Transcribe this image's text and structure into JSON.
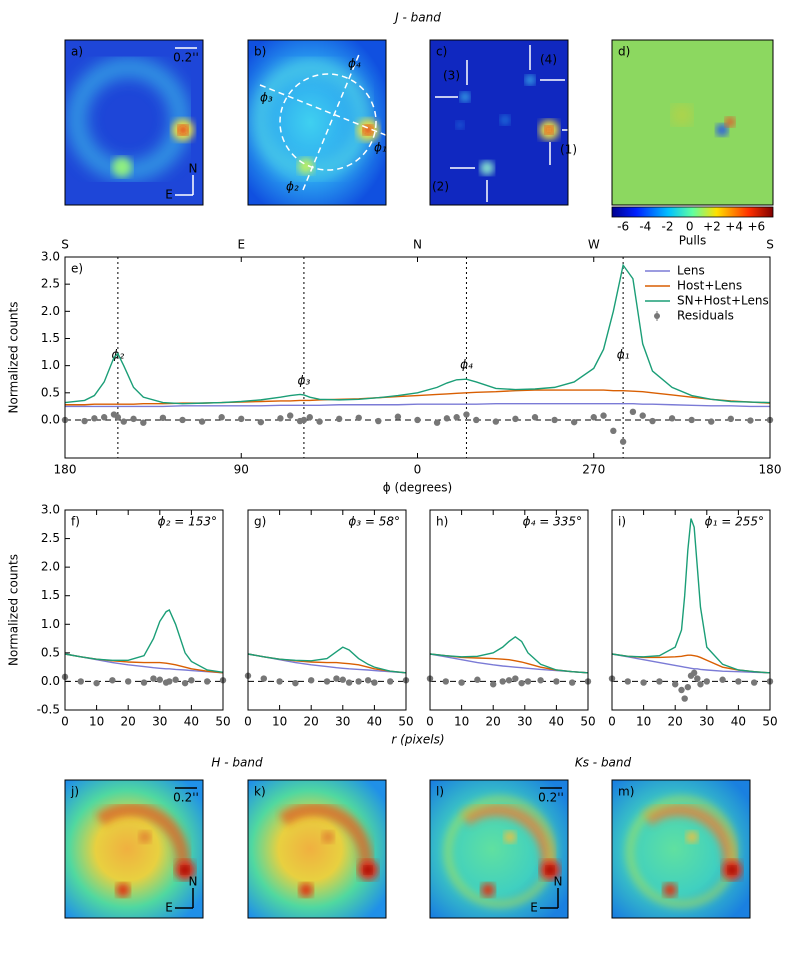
{
  "figure": {
    "band_titles": [
      "J - band",
      "H - band",
      "Ks - band"
    ],
    "panel_labels": [
      "a)",
      "b)",
      "c)",
      "d)",
      "e)",
      "f)",
      "g)",
      "h)",
      "i)",
      "j)",
      "k)",
      "l)",
      "m)"
    ],
    "scale_bar": "0.2''",
    "compass": {
      "north": "N",
      "east": "E"
    },
    "b_labels": [
      "ϕ₁",
      "ϕ₂",
      "ϕ₃",
      "ϕ₄"
    ],
    "c_labels": [
      "(1)",
      "(2)",
      "(3)",
      "(4)"
    ],
    "colorbar": {
      "label": "Pulls",
      "lim": [
        -7,
        7.5
      ],
      "ticks": [
        -6,
        -4,
        -2,
        0,
        {
          "value": 2,
          "label": "+2"
        },
        {
          "value": 4,
          "label": "+4"
        },
        {
          "value": 6,
          "label": "+6"
        }
      ]
    }
  },
  "chart_data": [
    {
      "type": "line",
      "ylabel": "Normalized counts",
      "xlabel": "ϕ (degrees)",
      "legend": "upper right",
      "xlim": [
        180,
        -180
      ],
      "ylim": [
        -0.7,
        3.0
      ],
      "xticks": [
        180,
        90,
        0,
        {
          "value": -90,
          "label": "270"
        },
        {
          "value": -180,
          "label": "180"
        }
      ],
      "top_ticks": [
        {
          "value": 180,
          "label": "S"
        },
        {
          "value": 90,
          "label": "E"
        },
        {
          "value": 0,
          "label": "N"
        },
        {
          "value": -90,
          "label": "W"
        },
        {
          "value": -180,
          "label": "S"
        }
      ],
      "yticks": [
        {
          "value": 0,
          "label": "0.0"
        },
        {
          "value": 0.5,
          "label": "0.5"
        },
        {
          "value": 1,
          "label": "1.0"
        },
        {
          "value": 1.5,
          "label": "1.5"
        },
        {
          "value": 2,
          "label": "2.0"
        },
        {
          "value": 2.5,
          "label": "2.5"
        },
        {
          "value": 3,
          "label": "3.0"
        }
      ],
      "markers": [
        {
          "value": 153,
          "label": "ϕ₂"
        },
        {
          "value": 58,
          "label": "ϕ₃"
        },
        {
          "value": -25,
          "label": "ϕ₄"
        },
        {
          "value": -105,
          "label": "ϕ₁"
        }
      ],
      "x": [
        180,
        170,
        165,
        160,
        155,
        153,
        150,
        145,
        140,
        130,
        120,
        110,
        100,
        90,
        80,
        70,
        65,
        60,
        58,
        55,
        50,
        40,
        30,
        20,
        10,
        0,
        -10,
        -15,
        -20,
        -25,
        -30,
        -40,
        -50,
        -60,
        -70,
        -80,
        -90,
        -95,
        -100,
        -105,
        -110,
        -115,
        -120,
        -130,
        -140,
        -150,
        -160,
        -170,
        -180
      ],
      "series": [
        {
          "name": "Lens",
          "color": "#7b7bd6",
          "values": [
            0.25,
            0.25,
            0.25,
            0.25,
            0.25,
            0.25,
            0.25,
            0.25,
            0.25,
            0.25,
            0.26,
            0.26,
            0.26,
            0.26,
            0.26,
            0.27,
            0.27,
            0.27,
            0.27,
            0.27,
            0.27,
            0.28,
            0.28,
            0.28,
            0.28,
            0.29,
            0.29,
            0.29,
            0.29,
            0.29,
            0.29,
            0.3,
            0.3,
            0.3,
            0.3,
            0.3,
            0.3,
            0.3,
            0.3,
            0.3,
            0.3,
            0.29,
            0.29,
            0.28,
            0.27,
            0.26,
            0.26,
            0.25,
            0.25
          ]
        },
        {
          "name": "Host+Lens",
          "color": "#d95f02",
          "values": [
            0.28,
            0.28,
            0.29,
            0.29,
            0.29,
            0.29,
            0.29,
            0.29,
            0.3,
            0.3,
            0.31,
            0.31,
            0.32,
            0.33,
            0.34,
            0.35,
            0.35,
            0.36,
            0.36,
            0.36,
            0.37,
            0.38,
            0.39,
            0.41,
            0.43,
            0.45,
            0.47,
            0.48,
            0.49,
            0.5,
            0.51,
            0.52,
            0.54,
            0.55,
            0.55,
            0.55,
            0.55,
            0.55,
            0.54,
            0.54,
            0.53,
            0.52,
            0.5,
            0.46,
            0.42,
            0.38,
            0.35,
            0.33,
            0.31
          ]
        },
        {
          "name": "SN+Host+Lens",
          "color": "#1b9e77",
          "values": [
            0.32,
            0.36,
            0.45,
            0.7,
            1.15,
            1.22,
            1.0,
            0.6,
            0.42,
            0.32,
            0.3,
            0.31,
            0.32,
            0.34,
            0.37,
            0.42,
            0.45,
            0.47,
            0.46,
            0.42,
            0.38,
            0.37,
            0.38,
            0.41,
            0.45,
            0.5,
            0.6,
            0.68,
            0.74,
            0.75,
            0.7,
            0.58,
            0.56,
            0.57,
            0.6,
            0.7,
            0.95,
            1.3,
            2.0,
            2.85,
            2.6,
            1.4,
            0.9,
            0.6,
            0.45,
            0.38,
            0.34,
            0.33,
            0.32
          ]
        },
        {
          "name": "Residuals",
          "color": "#777777",
          "marker": true,
          "values": [
            0.0,
            -0.02,
            0.03,
            0.05,
            0.1,
            0.05,
            -0.03,
            0.02,
            -0.05,
            0.04,
            0.0,
            -0.03,
            0.05,
            0.02,
            -0.04,
            0.03,
            0.08,
            -0.02,
            0.0,
            0.05,
            -0.03,
            0.02,
            0.04,
            -0.02,
            0.06,
            0.0,
            -0.05,
            0.03,
            0.05,
            0.1,
            0.0,
            -0.03,
            0.02,
            0.05,
            0.0,
            -0.04,
            0.05,
            0.08,
            -0.2,
            -0.4,
            0.15,
            0.08,
            -0.02,
            0.03,
            0.0,
            -0.03,
            0.02,
            -0.01,
            0.0
          ]
        }
      ]
    },
    {
      "type": "line",
      "ylabel": "Normalized counts",
      "xlabel": "r (pixels)",
      "note": "ϕ₂ = 153°",
      "xlim": [
        0,
        50
      ],
      "ylim": [
        -0.5,
        3.0
      ],
      "xticks": [
        0,
        10,
        20,
        30,
        40,
        50
      ],
      "yticks": [
        -0.5,
        {
          "value": 0,
          "label": "0.0"
        },
        0.5,
        {
          "value": 1,
          "label": "1.0"
        },
        1.5,
        {
          "value": 2,
          "label": "2.0"
        },
        2.5,
        {
          "value": 3,
          "label": "3.0"
        }
      ],
      "x": [
        0,
        5,
        10,
        15,
        20,
        25,
        28,
        30,
        32,
        33,
        35,
        38,
        40,
        45,
        50
      ],
      "series": [
        {
          "color": "#7b7bd6",
          "values": [
            0.48,
            0.43,
            0.38,
            0.33,
            0.29,
            0.26,
            0.24,
            0.23,
            0.22,
            0.22,
            0.21,
            0.2,
            0.19,
            0.17,
            0.15
          ]
        },
        {
          "color": "#d95f02",
          "values": [
            0.48,
            0.43,
            0.39,
            0.36,
            0.34,
            0.33,
            0.33,
            0.33,
            0.32,
            0.31,
            0.29,
            0.25,
            0.22,
            0.18,
            0.15
          ]
        },
        {
          "color": "#1b9e77",
          "values": [
            0.48,
            0.43,
            0.39,
            0.37,
            0.37,
            0.45,
            0.75,
            1.05,
            1.22,
            1.25,
            1.0,
            0.5,
            0.35,
            0.2,
            0.16
          ]
        },
        {
          "color": "#777777",
          "marker": true,
          "values": [
            0.08,
            0.0,
            -0.03,
            0.02,
            0.0,
            -0.02,
            0.05,
            0.03,
            -0.02,
            0.0,
            0.03,
            -0.03,
            0.02,
            0.0,
            0.02
          ]
        }
      ]
    },
    {
      "type": "line",
      "note": "ϕ₃ = 58°",
      "xlim": [
        0,
        50
      ],
      "ylim": [
        -0.5,
        3.0
      ],
      "xticks": [
        0,
        10,
        20,
        30,
        40,
        50
      ],
      "x": [
        0,
        5,
        10,
        15,
        20,
        25,
        28,
        30,
        32,
        35,
        38,
        40,
        45,
        50
      ],
      "series": [
        {
          "color": "#7b7bd6",
          "values": [
            0.48,
            0.43,
            0.38,
            0.33,
            0.29,
            0.26,
            0.24,
            0.23,
            0.22,
            0.21,
            0.2,
            0.19,
            0.17,
            0.15
          ]
        },
        {
          "color": "#d95f02",
          "values": [
            0.48,
            0.43,
            0.39,
            0.36,
            0.34,
            0.33,
            0.33,
            0.32,
            0.31,
            0.29,
            0.25,
            0.22,
            0.18,
            0.15
          ]
        },
        {
          "color": "#1b9e77",
          "values": [
            0.48,
            0.43,
            0.39,
            0.37,
            0.36,
            0.4,
            0.52,
            0.6,
            0.55,
            0.4,
            0.3,
            0.25,
            0.18,
            0.15
          ]
        },
        {
          "color": "#777777",
          "marker": true,
          "values": [
            0.1,
            0.05,
            0.0,
            -0.03,
            0.02,
            0.0,
            0.05,
            0.03,
            -0.02,
            0.0,
            0.02,
            -0.02,
            0.0,
            0.02
          ]
        }
      ]
    },
    {
      "type": "line",
      "note": "ϕ₄ = 335°",
      "xlim": [
        0,
        50
      ],
      "ylim": [
        -0.5,
        3.0
      ],
      "xticks": [
        0,
        10,
        20,
        30,
        40,
        50
      ],
      "x": [
        0,
        5,
        10,
        15,
        20,
        23,
        25,
        27,
        29,
        31,
        35,
        40,
        45,
        50
      ],
      "series": [
        {
          "color": "#7b7bd6",
          "values": [
            0.48,
            0.43,
            0.38,
            0.33,
            0.29,
            0.27,
            0.26,
            0.25,
            0.24,
            0.23,
            0.21,
            0.19,
            0.17,
            0.15
          ]
        },
        {
          "color": "#d95f02",
          "values": [
            0.48,
            0.45,
            0.42,
            0.41,
            0.4,
            0.39,
            0.38,
            0.36,
            0.34,
            0.31,
            0.25,
            0.2,
            0.17,
            0.15
          ]
        },
        {
          "color": "#1b9e77",
          "values": [
            0.48,
            0.45,
            0.43,
            0.44,
            0.5,
            0.6,
            0.7,
            0.78,
            0.7,
            0.5,
            0.3,
            0.2,
            0.17,
            0.15
          ]
        },
        {
          "color": "#777777",
          "marker": true,
          "values": [
            0.05,
            0.0,
            -0.02,
            0.03,
            -0.05,
            0.0,
            0.02,
            0.05,
            -0.03,
            0.0,
            0.02,
            0.0,
            -0.02,
            0.0
          ]
        }
      ]
    },
    {
      "type": "line",
      "note": "ϕ₁ = 255°",
      "xlim": [
        0,
        50
      ],
      "ylim": [
        -0.5,
        3.0
      ],
      "xticks": [
        0,
        10,
        20,
        30,
        40,
        50
      ],
      "x": [
        0,
        5,
        10,
        15,
        20,
        22,
        23,
        24,
        25,
        26,
        27,
        28,
        30,
        35,
        40,
        45,
        50
      ],
      "series": [
        {
          "color": "#7b7bd6",
          "values": [
            0.48,
            0.43,
            0.38,
            0.33,
            0.28,
            0.26,
            0.25,
            0.24,
            0.23,
            0.22,
            0.22,
            0.21,
            0.2,
            0.18,
            0.17,
            0.16,
            0.15
          ]
        },
        {
          "color": "#d95f02",
          "values": [
            0.48,
            0.44,
            0.42,
            0.42,
            0.43,
            0.44,
            0.45,
            0.46,
            0.46,
            0.45,
            0.44,
            0.42,
            0.37,
            0.25,
            0.2,
            0.17,
            0.15
          ]
        },
        {
          "color": "#1b9e77",
          "values": [
            0.48,
            0.44,
            0.43,
            0.45,
            0.6,
            0.9,
            1.5,
            2.3,
            2.85,
            2.7,
            2.0,
            1.3,
            0.6,
            0.3,
            0.2,
            0.17,
            0.15
          ]
        },
        {
          "color": "#777777",
          "marker": true,
          "values": [
            0.05,
            0.0,
            -0.02,
            0.0,
            -0.05,
            -0.15,
            -0.3,
            -0.1,
            0.1,
            0.15,
            0.05,
            -0.05,
            0.0,
            0.03,
            0.0,
            -0.02,
            0.0
          ]
        }
      ]
    }
  ]
}
